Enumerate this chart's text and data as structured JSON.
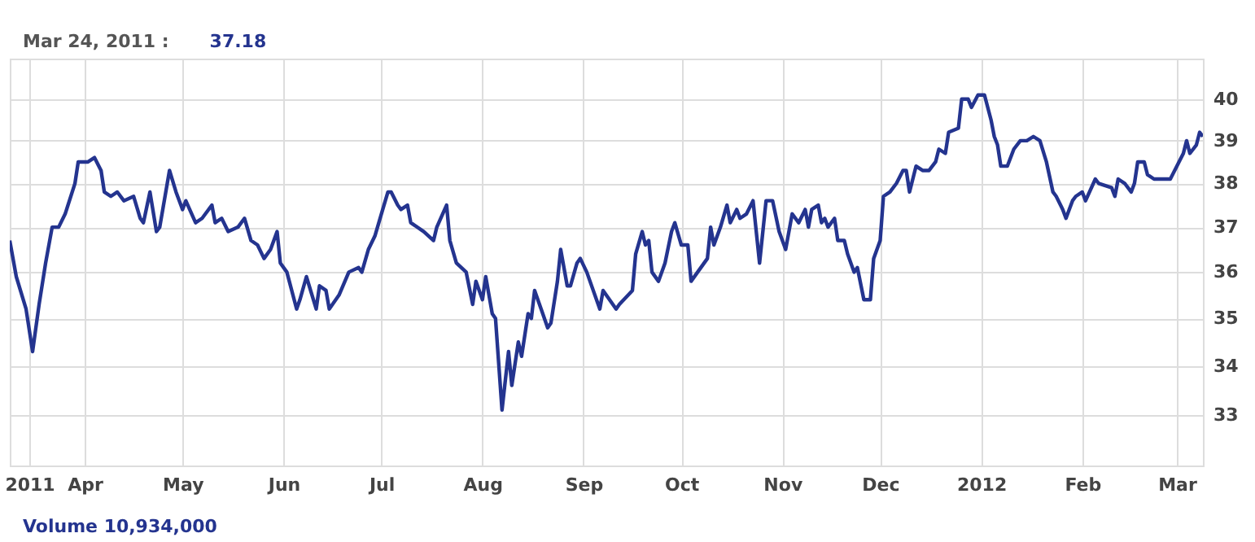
{
  "chart_data": {
    "type": "line",
    "log": "y",
    "grid": true,
    "marker": "none",
    "line_style": "solid",
    "annotations": [
      "Mar 24, 2011 :",
      "37.18",
      "Volume 10,934,000"
    ],
    "xlim": [
      "2011-03-09",
      "2012-03-09"
    ],
    "xticks": [
      {
        "value": "2011-03-15",
        "label": "2011"
      },
      {
        "value": "2011-04-01",
        "label": "Apr"
      },
      {
        "value": "2011-05-01",
        "label": "May"
      },
      {
        "value": "2011-06-01",
        "label": "Jun"
      },
      {
        "value": "2011-07-01",
        "label": "Jul"
      },
      {
        "value": "2011-08-01",
        "label": "Aug"
      },
      {
        "value": "2011-09-01",
        "label": "Sep"
      },
      {
        "value": "2011-10-01",
        "label": "Oct"
      },
      {
        "value": "2011-11-01",
        "label": "Nov"
      },
      {
        "value": "2011-12-01",
        "label": "Dec"
      },
      {
        "value": "2012-01-01",
        "label": "2012"
      },
      {
        "value": "2012-02-01",
        "label": "Feb"
      },
      {
        "value": "2012-03-01",
        "label": "Mar"
      }
    ],
    "ylim": [
      32,
      41
    ],
    "yticks": [
      33,
      34,
      35,
      36,
      37,
      38,
      39,
      40
    ],
    "x": [
      "2011-03-09",
      "2011-03-11",
      "2011-03-14",
      "2011-03-16",
      "2011-03-18",
      "2011-03-20",
      "2011-03-22",
      "2011-03-24",
      "2011-03-26",
      "2011-03-29",
      "2011-03-30",
      "2011-04-02",
      "2011-04-04",
      "2011-04-06",
      "2011-04-07",
      "2011-04-09",
      "2011-04-11",
      "2011-04-13",
      "2011-04-16",
      "2011-04-18",
      "2011-04-19",
      "2011-04-21",
      "2011-04-23",
      "2011-04-24",
      "2011-04-27",
      "2011-04-29",
      "2011-05-01",
      "2011-05-02",
      "2011-05-05",
      "2011-05-07",
      "2011-05-10",
      "2011-05-11",
      "2011-05-13",
      "2011-05-15",
      "2011-05-18",
      "2011-05-20",
      "2011-05-22",
      "2011-05-24",
      "2011-05-26",
      "2011-05-28",
      "2011-05-30",
      "2011-05-31",
      "2011-06-02",
      "2011-06-05",
      "2011-06-06",
      "2011-06-08",
      "2011-06-11",
      "2011-06-12",
      "2011-06-14",
      "2011-06-15",
      "2011-06-18",
      "2011-06-21",
      "2011-06-24",
      "2011-06-25",
      "2011-06-27",
      "2011-06-29",
      "2011-07-01",
      "2011-07-03",
      "2011-07-04",
      "2011-07-06",
      "2011-07-07",
      "2011-07-09",
      "2011-07-10",
      "2011-07-14",
      "2011-07-17",
      "2011-07-18",
      "2011-07-21",
      "2011-07-22",
      "2011-07-24",
      "2011-07-27",
      "2011-07-29",
      "2011-07-30",
      "2011-08-01",
      "2011-08-02",
      "2011-08-04",
      "2011-08-05",
      "2011-08-07",
      "2011-08-09",
      "2011-08-10",
      "2011-08-12",
      "2011-08-13",
      "2011-08-15",
      "2011-08-16",
      "2011-08-17",
      "2011-08-19",
      "2011-08-21",
      "2011-08-22",
      "2011-08-24",
      "2011-08-25",
      "2011-08-27",
      "2011-08-28",
      "2011-08-30",
      "2011-08-31",
      "2011-09-02",
      "2011-09-06",
      "2011-09-07",
      "2011-09-11",
      "2011-09-12",
      "2011-09-16",
      "2011-09-17",
      "2011-09-19",
      "2011-09-20",
      "2011-09-21",
      "2011-09-22",
      "2011-09-24",
      "2011-09-26",
      "2011-09-28",
      "2011-09-29",
      "2011-10-01",
      "2011-10-03",
      "2011-10-04",
      "2011-10-06",
      "2011-10-09",
      "2011-10-10",
      "2011-10-11",
      "2011-10-13",
      "2011-10-15",
      "2011-10-16",
      "2011-10-18",
      "2011-10-19",
      "2011-10-21",
      "2011-10-23",
      "2011-10-25",
      "2011-10-27",
      "2011-10-29",
      "2011-10-31",
      "2011-11-02",
      "2011-11-04",
      "2011-11-06",
      "2011-11-08",
      "2011-11-09",
      "2011-11-10",
      "2011-11-12",
      "2011-11-13",
      "2011-11-14",
      "2011-11-15",
      "2011-11-17",
      "2011-11-18",
      "2011-11-20",
      "2011-11-21",
      "2011-11-23",
      "2011-11-24",
      "2011-11-26",
      "2011-11-28",
      "2011-11-29",
      "2011-12-01",
      "2011-12-02",
      "2011-12-04",
      "2011-12-06",
      "2011-12-08",
      "2011-12-09",
      "2011-12-10",
      "2011-12-12",
      "2011-12-14",
      "2011-12-16",
      "2011-12-18",
      "2011-12-19",
      "2011-12-21",
      "2011-12-22",
      "2011-12-25",
      "2011-12-26",
      "2011-12-28",
      "2011-12-29",
      "2011-12-31",
      "2012-01-02",
      "2012-01-04",
      "2012-01-05",
      "2012-01-06",
      "2012-01-07",
      "2012-01-09",
      "2012-01-11",
      "2012-01-13",
      "2012-01-15",
      "2012-01-17",
      "2012-01-19",
      "2012-01-21",
      "2012-01-23",
      "2012-01-24",
      "2012-01-26",
      "2012-01-27",
      "2012-01-29",
      "2012-01-30",
      "2012-02-01",
      "2012-02-02",
      "2012-02-05",
      "2012-02-06",
      "2012-02-10",
      "2012-02-11",
      "2012-02-12",
      "2012-02-14",
      "2012-02-16",
      "2012-02-17",
      "2012-02-18",
      "2012-02-20",
      "2012-02-21",
      "2012-02-23",
      "2012-02-28",
      "2012-03-01",
      "2012-03-03",
      "2012-03-04",
      "2012-03-05",
      "2012-03-07",
      "2012-03-08",
      "2012-03-09"
    ],
    "series": [
      {
        "color": "#24348f",
        "values": [
          36.7,
          35.9,
          35.2,
          34.3,
          35.3,
          36.2,
          37.0,
          37.0,
          37.3,
          38.0,
          38.5,
          38.5,
          38.6,
          38.3,
          37.8,
          37.7,
          37.8,
          37.6,
          37.7,
          37.2,
          37.1,
          37.8,
          36.9,
          37.0,
          38.3,
          37.8,
          37.4,
          37.6,
          37.1,
          37.2,
          37.5,
          37.1,
          37.2,
          36.9,
          37.0,
          37.2,
          36.7,
          36.6,
          36.3,
          36.5,
          36.9,
          36.2,
          36.0,
          35.2,
          35.4,
          35.9,
          35.2,
          35.7,
          35.6,
          35.2,
          35.5,
          36.0,
          36.1,
          36.0,
          36.5,
          36.8,
          37.3,
          37.8,
          37.8,
          37.5,
          37.4,
          37.5,
          37.1,
          36.9,
          36.7,
          37.0,
          37.5,
          36.7,
          36.2,
          36.0,
          35.3,
          35.8,
          35.4,
          35.9,
          35.1,
          35.0,
          33.1,
          34.3,
          33.6,
          34.5,
          34.2,
          35.1,
          35.0,
          35.6,
          35.2,
          34.8,
          34.9,
          35.8,
          36.5,
          35.7,
          35.7,
          36.2,
          36.3,
          36.0,
          35.2,
          35.6,
          35.2,
          35.3,
          35.6,
          36.4,
          36.9,
          36.6,
          36.7,
          36.0,
          35.8,
          36.2,
          36.9,
          37.1,
          36.6,
          36.6,
          35.8,
          36.0,
          36.3,
          37.0,
          36.6,
          37.0,
          37.5,
          37.1,
          37.4,
          37.2,
          37.3,
          37.6,
          36.2,
          37.6,
          37.6,
          36.9,
          36.5,
          37.3,
          37.1,
          37.4,
          37.0,
          37.4,
          37.5,
          37.1,
          37.2,
          37.0,
          37.2,
          36.7,
          36.7,
          36.4,
          36.0,
          36.1,
          35.4,
          35.4,
          36.3,
          36.7,
          37.7,
          37.8,
          38.0,
          38.3,
          38.3,
          37.8,
          38.4,
          38.3,
          38.3,
          38.5,
          38.8,
          38.7,
          39.2,
          39.3,
          40.0,
          40.0,
          39.8,
          40.1,
          40.1,
          39.5,
          39.1,
          38.9,
          38.4,
          38.4,
          38.8,
          39.0,
          39.0,
          39.1,
          39.0,
          38.5,
          37.8,
          37.7,
          37.4,
          37.2,
          37.6,
          37.7,
          37.8,
          37.6,
          38.1,
          38.0,
          37.9,
          37.7,
          38.1,
          38.0,
          37.8,
          38.0,
          38.5,
          38.5,
          38.2,
          38.1,
          38.1,
          38.4,
          38.7,
          39.0,
          38.7,
          38.9,
          39.2,
          39.1
        ]
      }
    ]
  }
}
